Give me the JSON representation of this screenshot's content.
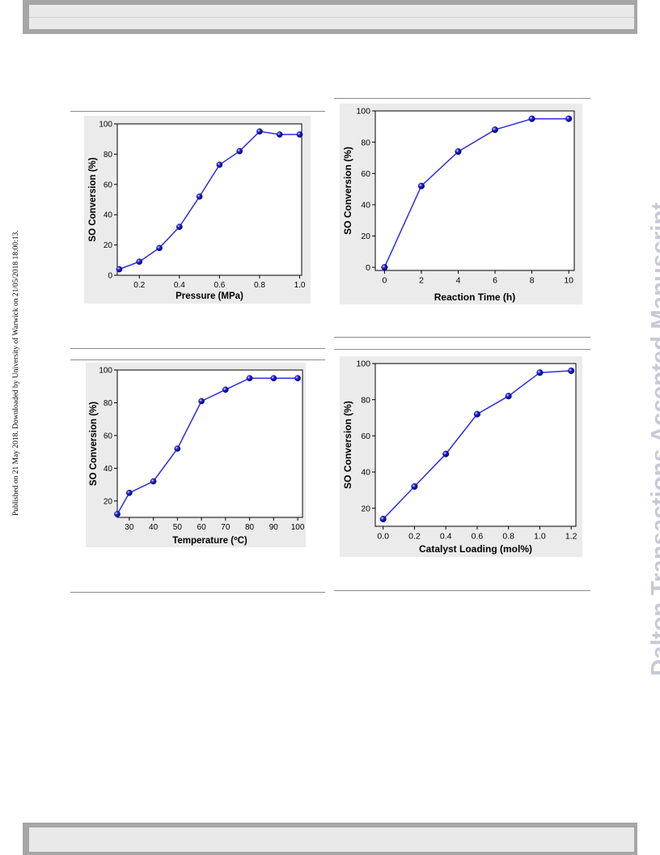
{
  "page": {
    "side_note": "Published on 21 May 2018. Downloaded by University of Warwick on 21/05/2018 18:00:13.",
    "watermark": "Dalton Transactions Accepted Manuscript"
  },
  "colors": {
    "line": "#2d2de6",
    "marker": "#1a1ad6",
    "axis": "#000000",
    "panel": "#ebebeb"
  },
  "chart_data": [
    {
      "type": "line",
      "xlabel": "Pressure (MPa)",
      "ylabel": "SO Conversion (%)",
      "xlim": [
        0.09,
        1.01
      ],
      "ylim": [
        0,
        100
      ],
      "xticks": [
        0.2,
        0.4,
        0.6,
        0.8,
        1.0
      ],
      "xtick_labels": [
        "0.2",
        "0.4",
        "0.6",
        "0.8",
        "1.0"
      ],
      "yticks": [
        0,
        20,
        40,
        60,
        80,
        100
      ],
      "ytick_labels": [
        "0",
        "20",
        "40",
        "60",
        "80",
        "100"
      ],
      "series": [
        {
          "x": [
            0.1,
            0.2,
            0.3,
            0.4,
            0.5,
            0.6,
            0.7,
            0.8,
            0.9,
            1.0
          ],
          "y": [
            4,
            9,
            18,
            32,
            52,
            73,
            82,
            95,
            93,
            93
          ]
        }
      ]
    },
    {
      "type": "line",
      "xlabel": "Reaction Time (h)",
      "ylabel": "SO Conversion (%)",
      "xlim": [
        -0.5,
        10.3
      ],
      "ylim": [
        -2,
        100
      ],
      "xticks": [
        0,
        2,
        4,
        6,
        8,
        10
      ],
      "xtick_labels": [
        "0",
        "2",
        "4",
        "6",
        "8",
        "10"
      ],
      "yticks": [
        0,
        20,
        40,
        60,
        80,
        100
      ],
      "ytick_labels": [
        "0",
        "20",
        "40",
        "60",
        "80",
        "100"
      ],
      "series": [
        {
          "x": [
            0,
            2,
            4,
            6,
            8,
            10
          ],
          "y": [
            0,
            52,
            74,
            88,
            95,
            95
          ]
        }
      ]
    },
    {
      "type": "line",
      "xlabel": "Temperature (",
      "xlabel_sup": "o",
      "xlabel_end": "C)",
      "ylabel": "SO Conversion (%)",
      "xlim": [
        25,
        102
      ],
      "ylim": [
        10,
        100
      ],
      "xticks": [
        30,
        40,
        50,
        60,
        70,
        80,
        90,
        100
      ],
      "xtick_labels": [
        "30",
        "40",
        "50",
        "60",
        "70",
        "80",
        "90",
        "100"
      ],
      "yticks": [
        20,
        40,
        60,
        80,
        100
      ],
      "ytick_labels": [
        "20",
        "40",
        "60",
        "80",
        "100"
      ],
      "series": [
        {
          "x": [
            25,
            30,
            40,
            50,
            60,
            70,
            80,
            90,
            100
          ],
          "y": [
            12,
            25,
            32,
            52,
            81,
            88,
            95,
            95,
            95
          ]
        }
      ]
    },
    {
      "type": "line",
      "xlabel": "Catalyst Loading (mol%)",
      "ylabel": "SO Conversion (%)",
      "xlim": [
        -0.05,
        1.23
      ],
      "ylim": [
        10,
        100
      ],
      "xticks": [
        0.0,
        0.2,
        0.4,
        0.6,
        0.8,
        1.0,
        1.2
      ],
      "xtick_labels": [
        "0.0",
        "0.2",
        "0.4",
        "0.6",
        "0.8",
        "1.0",
        "1.2"
      ],
      "yticks": [
        20,
        40,
        60,
        80,
        100
      ],
      "ytick_labels": [
        "20",
        "40",
        "60",
        "80",
        "100"
      ],
      "series": [
        {
          "x": [
            0.0,
            0.2,
            0.4,
            0.6,
            0.8,
            1.0,
            1.2
          ],
          "y": [
            14,
            32,
            50,
            72,
            82,
            95,
            96
          ]
        }
      ]
    }
  ]
}
